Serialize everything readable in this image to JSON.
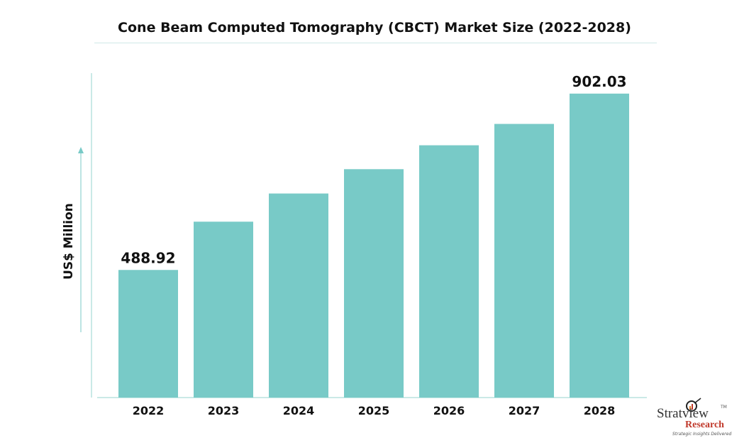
{
  "chart_data": {
    "type": "bar",
    "title": "Cone Beam Computed Tomography (CBCT) Market Size (2022-2028)",
    "ylabel": "US$ Million",
    "xlabel": "",
    "categories": [
      "2022",
      "2023",
      "2024",
      "2025",
      "2026",
      "2027",
      "2028"
    ],
    "values": [
      488.92,
      602,
      668,
      725,
      781,
      831,
      902.03
    ],
    "data_labels": [
      "488.92",
      "",
      "",
      "",
      "",
      "",
      "902.03"
    ],
    "ylim": [
      190,
      950
    ],
    "grid": false,
    "bar_color": "#78cac7",
    "axis_color": "#b9e2df"
  },
  "logo": {
    "name": "Stratview",
    "tm": "TM",
    "sub": "Research",
    "tagline": "Strategic Insights Delivered"
  }
}
